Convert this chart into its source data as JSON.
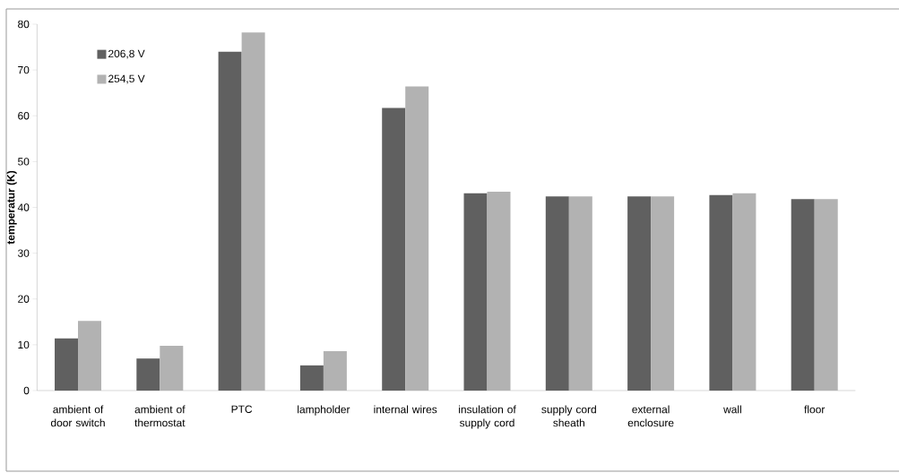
{
  "chart_data": {
    "type": "bar",
    "ylabel": "temperatur (K)",
    "categories": [
      "ambient of door switch",
      "ambient of thermostat",
      "PTC",
      "lampholder",
      "internal wires",
      "insulation of supply cord",
      "supply cord sheath",
      "external enclosure",
      "wall",
      "floor"
    ],
    "series": [
      {
        "name": "206,8 V",
        "color": "#606060",
        "values": [
          11.4,
          7.0,
          74.0,
          5.5,
          61.7,
          43.1,
          42.4,
          42.4,
          42.7,
          41.8
        ]
      },
      {
        "name": "254,5 V",
        "color": "#b2b2b2",
        "values": [
          15.2,
          9.8,
          78.2,
          8.6,
          66.4,
          43.4,
          42.4,
          42.4,
          43.1,
          41.8
        ]
      }
    ],
    "ylim": [
      0,
      80
    ],
    "yticks": [
      0,
      10,
      20,
      30,
      40,
      50,
      60,
      70,
      80
    ],
    "grid": false,
    "legend": "top left"
  }
}
